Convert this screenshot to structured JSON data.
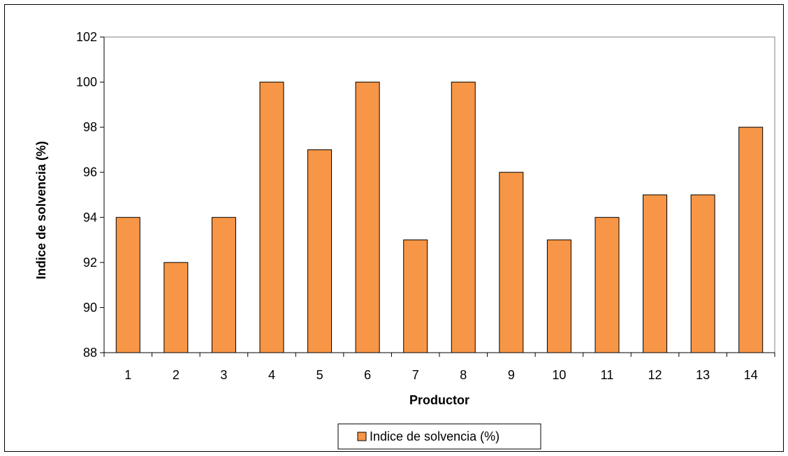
{
  "chart_data": {
    "type": "bar",
    "categories": [
      "1",
      "2",
      "3",
      "4",
      "5",
      "6",
      "7",
      "8",
      "9",
      "10",
      "11",
      "12",
      "13",
      "14"
    ],
    "series": [
      {
        "name": "Indice de solvencia (%)",
        "values": [
          94,
          92,
          94,
          100,
          97,
          100,
          93,
          100,
          96,
          93,
          94,
          95,
          95,
          98
        ],
        "color": "#F79646"
      }
    ],
    "xlabel": "Productor",
    "ylabel": "Indice de solvencia (%)",
    "ylim": [
      88,
      102
    ],
    "yticks": [
      88,
      90,
      92,
      94,
      96,
      98,
      100,
      102
    ],
    "grid": false,
    "legend": "bottom"
  }
}
